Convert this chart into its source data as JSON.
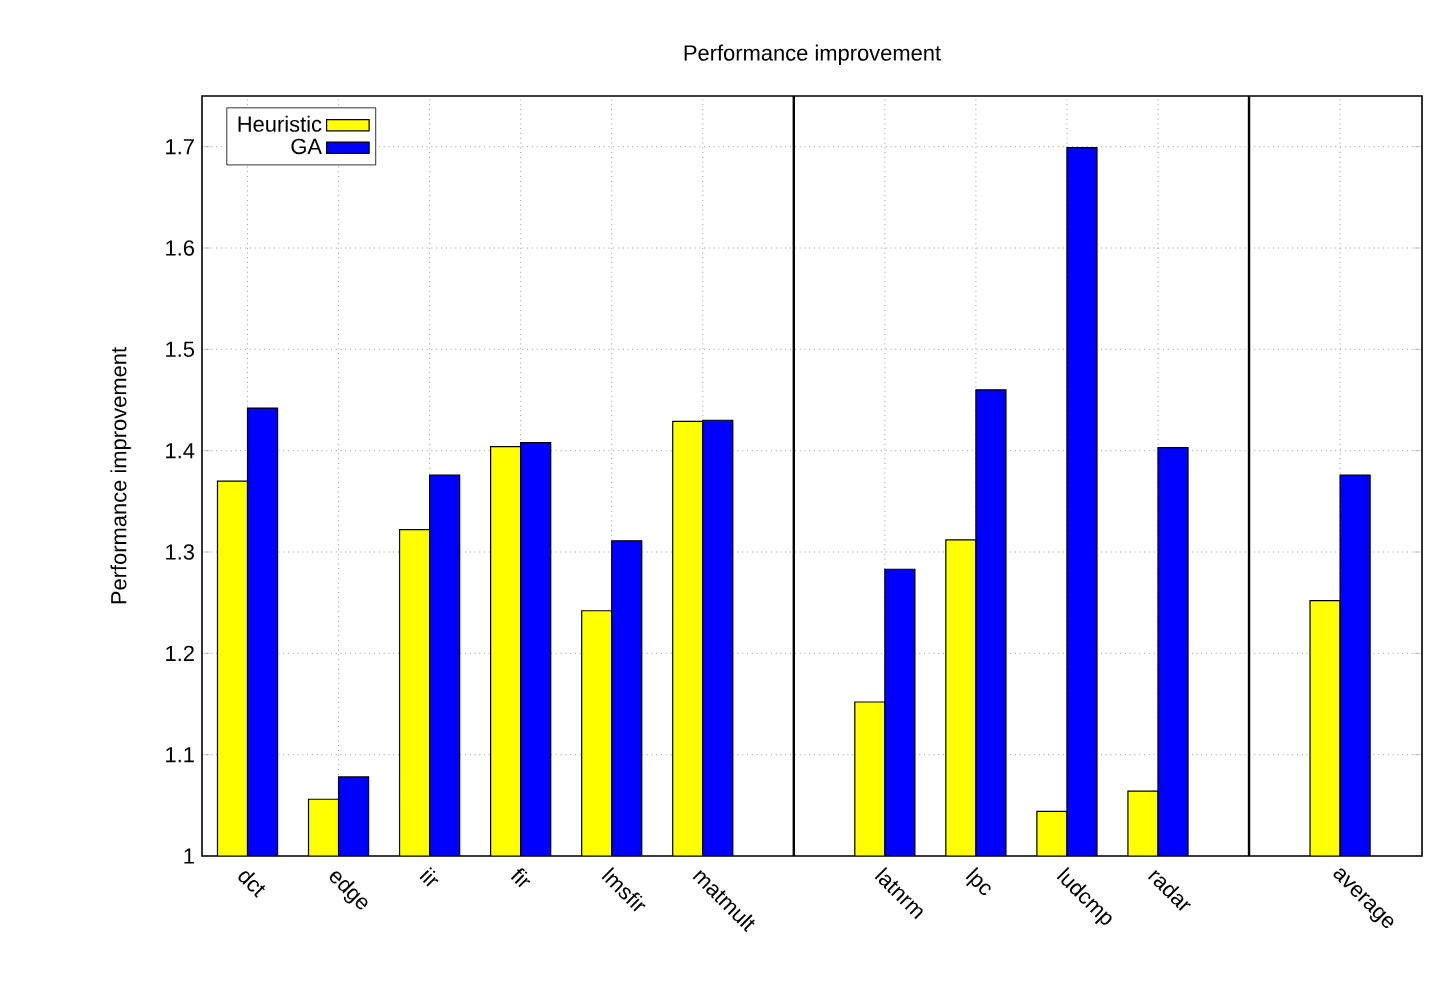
{
  "chart_data": {
    "type": "bar",
    "title": "Performance improvement",
    "ylabel": "Performance improvement",
    "categories": [
      "dct",
      "edge",
      "iir",
      "fir",
      "lmsfir",
      "matmult",
      null,
      "latnrm",
      "lpc",
      "ludcmp",
      "radar",
      null,
      "average"
    ],
    "series": [
      {
        "name": "Heuristic",
        "color": "#ffff00",
        "values": [
          1.37,
          1.056,
          1.322,
          1.404,
          1.242,
          1.429,
          null,
          1.152,
          1.312,
          1.044,
          1.064,
          null,
          1.252
        ]
      },
      {
        "name": "GA",
        "color": "#0000ff",
        "values": [
          1.442,
          1.078,
          1.376,
          1.408,
          1.311,
          1.43,
          null,
          1.283,
          1.46,
          1.699,
          1.403,
          null,
          1.376
        ]
      }
    ],
    "ylim": [
      1,
      1.75
    ],
    "yticks": [
      1,
      1.1,
      1.2,
      1.3,
      1.4,
      1.5,
      1.6,
      1.7
    ],
    "grid": true,
    "legend": "top left"
  }
}
